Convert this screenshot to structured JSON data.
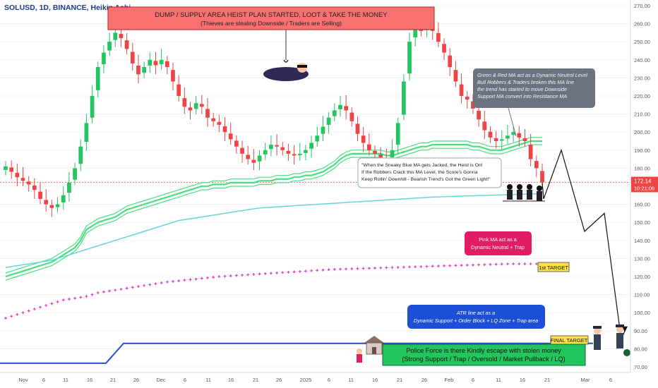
{
  "header": {
    "symbol": "SOLUSD, 1D, BINANCE, Heikin Ashi"
  },
  "price_label": {
    "price": "172.14",
    "countdown": "10:21:06"
  },
  "annotations": {
    "banner_title": "DUMP / SUPPLY AREA HEIST PLAN STARTED, LOOT & TAKE THE MONEY",
    "banner_subtitle": "(Thieves are stealing Downside / Traders are Selling)",
    "grey_note": [
      "Green & Red MA act as a Dynamic Neutrol Level",
      "Bull Robbers & Traders broken this MA line",
      "the trend has started to move Downside",
      "Support MA convert into Resistance MA"
    ],
    "blue_ma_note": [
      "\"When the Sneaky Blue MA gets Jacked, the Heist is On!",
      "If the Robbers Crack this MA Level, the Score's Gonna",
      "Keep Rollin' Downhill - Bearish Trend's Got the Green Light!\""
    ],
    "pink_note": [
      "Pink MA act as a",
      "Dynamic Neutral + Trap"
    ],
    "first_target": "1st TARGET",
    "atr_note": [
      "ATR line act as a",
      "Dynamic Support + Order Block + LQ Zone + Trap area"
    ],
    "final_target": "FINAL TARGET",
    "police_note": [
      "Police Force is there Kindly escape with stolen money",
      "(Strong Support / Trap / Oversold / Market Pullback / LQ)"
    ]
  },
  "colors": {
    "bull": "#22c55e",
    "bear": "#ef4444",
    "ma_green": "#4ade80",
    "ma_blue": "#67d4d8",
    "ma_pink": "#e040c0",
    "atr_line": "#1d4ed8",
    "banner": "#f87171",
    "grey_box": "#6b7280",
    "pink_box": "#e11d63",
    "blue_box": "#1d4ed8",
    "green_box": "#22c55e",
    "target_box": "#fde047"
  },
  "chart_data": {
    "type": "candlestick",
    "y_axis_ticks": [
      70,
      80,
      90,
      100,
      110,
      120,
      130,
      140,
      150,
      160,
      170,
      180,
      190,
      200,
      210,
      220,
      230,
      240,
      250,
      260,
      270
    ],
    "y_tick_labels": [
      "70.00",
      "80.00",
      "90.00",
      "100.00",
      "110.00",
      "120.00",
      "130.00",
      "140.00",
      "150.00",
      "160.00",
      "170.00",
      "180.00",
      "190.00",
      "200.00",
      "210.00",
      "220.00",
      "230.00",
      "240.00",
      "250.00",
      "260.00",
      "270.00"
    ],
    "ylim": [
      67,
      274
    ],
    "x_tick_labels": [
      "Nov",
      "6",
      "11",
      "16",
      "21",
      "26",
      "Dec",
      "6",
      "11",
      "16",
      "21",
      "26",
      "2025",
      "6",
      "11",
      "16",
      "21",
      "26",
      "Feb",
      "6",
      "11",
      "16",
      "21",
      "Mar",
      "6"
    ],
    "candle_close": [
      181,
      178,
      175,
      173,
      171,
      168,
      163,
      160,
      158,
      160,
      165,
      172,
      180,
      192,
      205,
      220,
      236,
      244,
      250,
      255,
      252,
      246,
      238,
      232,
      236,
      240,
      237,
      240,
      236,
      228,
      220,
      214,
      212,
      216,
      214,
      208,
      206,
      204,
      200,
      196,
      192,
      188,
      185,
      183,
      187,
      190,
      193,
      192,
      190,
      188,
      187,
      188,
      190,
      194,
      198,
      203,
      208,
      212,
      215,
      212,
      206,
      199,
      194,
      190,
      188,
      186,
      185,
      190,
      205,
      228,
      250,
      262,
      256,
      258,
      256,
      250,
      244,
      236,
      228,
      220,
      218,
      213,
      207,
      201,
      197,
      195,
      196,
      198,
      200,
      197,
      195,
      185,
      180,
      172.14
    ],
    "projection_path": [
      172.14,
      163,
      190,
      145,
      155,
      85,
      90
    ],
    "ma_green_band": [
      120,
      121,
      122,
      123,
      124,
      125,
      126,
      127,
      128,
      130,
      132,
      134,
      136,
      140,
      146,
      148,
      150,
      151,
      152,
      153,
      155,
      157,
      158,
      159,
      160,
      161,
      162,
      163,
      164,
      165,
      166,
      167,
      168,
      169,
      170,
      170,
      171,
      171,
      171,
      172,
      172,
      172,
      172,
      172,
      173,
      173,
      173,
      174,
      174,
      174,
      175,
      175,
      176,
      176,
      177,
      178,
      180,
      182,
      185,
      187,
      188,
      188,
      188,
      188,
      188,
      188,
      187,
      187,
      188,
      189,
      190,
      191,
      192,
      192,
      193,
      193,
      193,
      193,
      193,
      193,
      193,
      192,
      192,
      191,
      190,
      190,
      190,
      191,
      192,
      193,
      194,
      195,
      195,
      195
    ],
    "ma_blue": [
      125,
      125.5,
      126,
      126.5,
      127,
      127.5,
      128,
      128.5,
      129,
      130,
      131,
      132,
      133,
      134,
      135,
      136,
      137,
      138,
      139,
      140,
      141,
      142,
      143,
      144,
      145,
      146,
      147,
      148,
      149,
      150,
      151,
      151.5,
      152,
      152.5,
      153,
      153.5,
      154,
      154.5,
      155,
      155.5,
      156,
      156.5,
      157,
      157.5,
      158,
      158.2,
      158.4,
      158.6,
      158.8,
      159,
      159.2,
      159.4,
      159.6,
      159.8,
      160,
      160.2,
      160.4,
      160.6,
      160.8,
      161,
      161.2,
      161.4,
      161.6,
      161.8,
      162,
      162.2,
      162.4,
      162.6,
      162.8,
      163,
      163.2,
      163.4,
      163.6,
      163.8,
      164,
      164.1,
      164.2,
      164.3,
      164.4,
      164.5,
      164.6,
      164.7,
      164.8,
      164.9,
      165,
      165.1,
      165.2,
      165.3,
      165.4,
      165.5,
      165.6,
      165.7,
      165.8,
      165.9
    ],
    "ma_pink": [
      97,
      98,
      99,
      100,
      101,
      102,
      103,
      104,
      105,
      106,
      107,
      107.5,
      108,
      108.5,
      109,
      110,
      111,
      111.5,
      112,
      112.5,
      113,
      113.5,
      114,
      114.5,
      115,
      115.5,
      116,
      116.5,
      117,
      117.3,
      117.6,
      118,
      118.3,
      118.6,
      119,
      119.3,
      119.6,
      120,
      120.2,
      120.4,
      120.6,
      120.8,
      121,
      121.2,
      121.4,
      121.6,
      121.8,
      122,
      122.2,
      122.4,
      122.6,
      122.8,
      123,
      123.2,
      123.4,
      123.6,
      123.8,
      124,
      124.1,
      124.2,
      124.3,
      124.4,
      124.5,
      124.6,
      124.7,
      124.8,
      124.9,
      125,
      125.1,
      125.2,
      125.3,
      125.4,
      125.5,
      125.6,
      125.7,
      125.8,
      125.9,
      126,
      126.1,
      126.2,
      126.3,
      126.4,
      126.5,
      126.6,
      126.7,
      126.8,
      126.9,
      127,
      127,
      127,
      127,
      127,
      127,
      127
    ],
    "atr_line": [
      [
        0,
        72
      ],
      [
        150,
        72
      ],
      [
        175,
        83
      ],
      [
        840,
        83
      ]
    ]
  }
}
